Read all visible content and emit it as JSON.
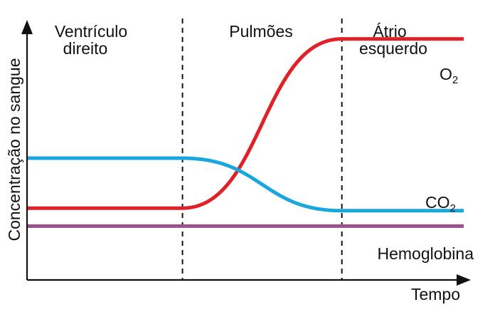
{
  "chart_data": {
    "type": "line",
    "xlabel": "Tempo",
    "ylabel": "Concentração no sangue",
    "regions": [
      {
        "label": [
          "Ventrículo",
          "direito"
        ]
      },
      {
        "label": [
          "Pulmões"
        ]
      },
      {
        "label": [
          "Átrio",
          "esquerdo"
        ]
      }
    ],
    "xlim": [
      0,
      100
    ],
    "ylim": [
      0,
      100
    ],
    "boundaries": [
      35.6,
      72.1
    ],
    "grid": false,
    "series": [
      {
        "name": "O",
        "sub": "2",
        "color": "#e02228",
        "x": [
          0,
          35.6,
          72.1,
          100
        ],
        "y": [
          28,
          28,
          94,
          94
        ],
        "ease": true
      },
      {
        "name": "CO",
        "sub": "2",
        "color": "#1aa7dd",
        "x": [
          0,
          35.6,
          72.1,
          100
        ],
        "y": [
          47.5,
          47.5,
          27,
          27
        ],
        "ease": true
      },
      {
        "name": "Hemoglobina",
        "sub": "",
        "color": "#9b4f8b",
        "x": [
          0,
          100
        ],
        "y": [
          21,
          21
        ],
        "ease": false
      }
    ]
  }
}
